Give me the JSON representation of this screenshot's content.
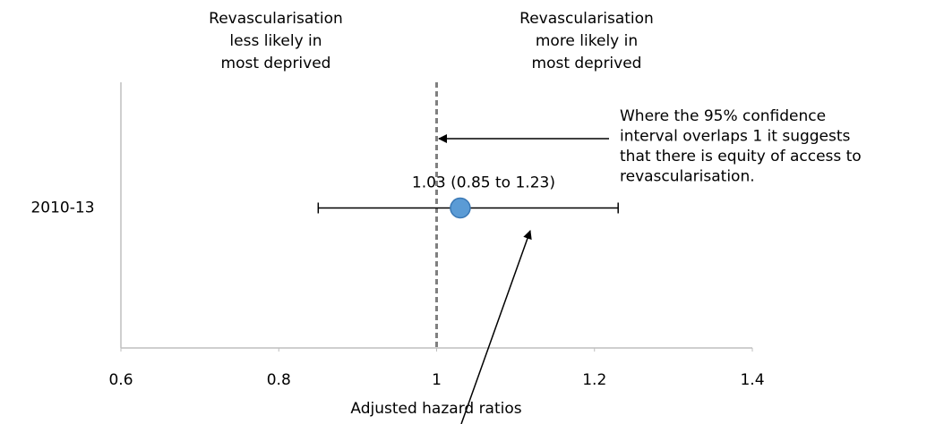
{
  "chart_data": {
    "type": "forest",
    "categories": [
      "2010-13"
    ],
    "series": [
      {
        "values": [
          1.03
        ],
        "lower": [
          0.85
        ],
        "upper": [
          1.23
        ],
        "color": "#5b9bd5",
        "value_labels": [
          "1.03 (0.85 to 1.23)"
        ]
      }
    ],
    "xlim": [
      0.6,
      1.4
    ],
    "xticks": [
      0.6,
      0.8,
      1,
      1.2,
      1.4
    ],
    "reference_line": 1,
    "x_label": "Adjusted hazard ratios",
    "annotations": {
      "left_header": [
        "Revascularisation",
        "less likely in",
        "most deprived"
      ],
      "right_header": [
        "Revascularisation",
        "more likely in",
        "most deprived"
      ],
      "callout": [
        "Where the 95% confidence",
        "interval overlaps 1 it suggests",
        "that there is equity of access to",
        "revascularisation."
      ]
    }
  }
}
